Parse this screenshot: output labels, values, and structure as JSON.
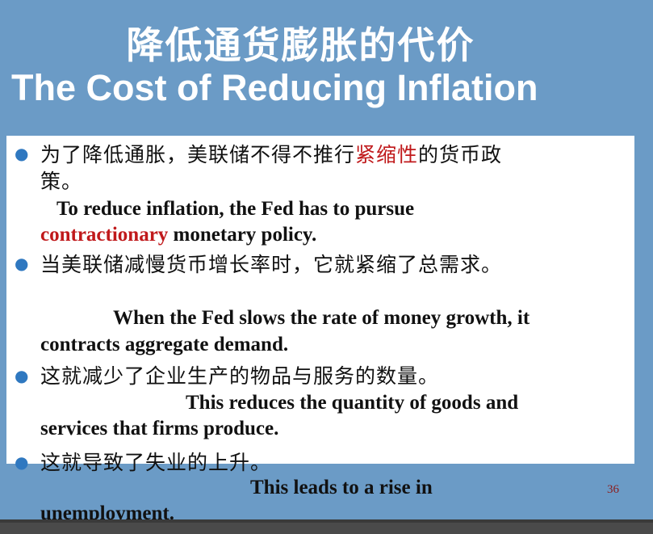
{
  "slide": {
    "title_cn": "降低通货膨胀的代价",
    "title_en": "The Cost of Reducing Inflation",
    "page_number": "36"
  },
  "points": [
    {
      "cn_line1_before": "为了降低通胀，美联储不得不推行",
      "cn_line1_highlight": "紧缩性",
      "cn_line1_after": "的货币政",
      "cn_line2": "策。",
      "en_line1": "To reduce inflation, the Fed has to pursue",
      "en_line2_highlight": "contractionary",
      "en_line2_after": " monetary policy."
    },
    {
      "cn_line1": "当美联储减慢货币增长率时，它就紧缩了总需求。",
      "en_line1": "When the Fed slows the rate of money growth, it",
      "en_line2": "contracts aggregate demand."
    },
    {
      "cn_line1": "这就减少了企业生产的物品与服务的数量。",
      "en_line1": "This reduces the quantity of goods and",
      "en_line2": "services that firms produce."
    },
    {
      "cn_line1": "这就导致了失业的上升。",
      "en_line1": "This leads to a rise in",
      "en_line2": "unemployment."
    }
  ],
  "colors": {
    "background": "#6b9bc6",
    "highlight": "#c0191b",
    "bullet": "#2f78c0"
  }
}
